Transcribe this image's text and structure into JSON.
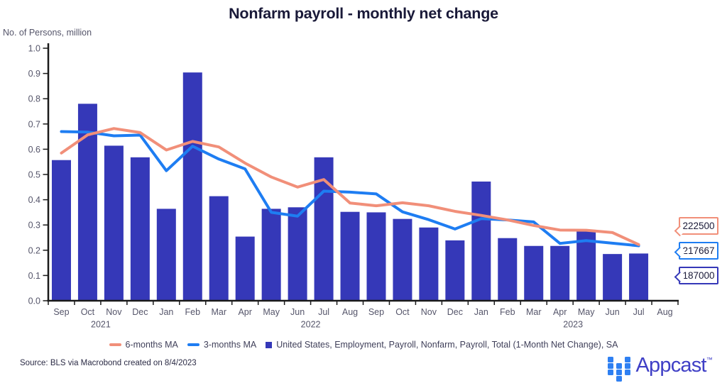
{
  "title": "Nonfarm payroll - monthly net change",
  "y_axis_label": "No. of Persons, million",
  "source": "Source: BLS via Macrobond created on 8/4/2023",
  "logo": {
    "brand": "Appcast",
    "trademark": "™"
  },
  "legend": [
    {
      "label": "6-months MA",
      "swatch": "ma6"
    },
    {
      "label": "3-months MA",
      "swatch": "ma3"
    },
    {
      "label": "United States, Employment, Payroll, Nonfarm, Payroll, Total (1-Month Net Change), SA",
      "swatch": "bar"
    }
  ],
  "callouts": [
    {
      "value": "222500",
      "series": "6-months MA",
      "color_key": "ma6"
    },
    {
      "value": "217667",
      "series": "3-months MA",
      "color_key": "ma3"
    },
    {
      "value": "187000",
      "series": "payroll-net-change",
      "color_key": "bar"
    }
  ],
  "colors": {
    "bar": "#3538B8",
    "ma6": "#F18F79",
    "ma3": "#1E7DF2",
    "axis_line": "#1A1A1A",
    "axis_text": "#55556A",
    "title_text": "#191938",
    "legend_text": "#40405A",
    "callout_text": "#1A1A38",
    "source_text": "#2B2B45",
    "logo_square": "#2F80F2",
    "logo_text": "#3F3FC6"
  },
  "chart_data": {
    "type": "bar+line",
    "title": "Nonfarm payroll - monthly net change",
    "ylabel": "No. of Persons, million",
    "ylim": [
      0,
      1
    ],
    "ytick_step": 0.1,
    "grid": false,
    "legend_position": "bottom",
    "months": [
      "Sep",
      "Oct",
      "Nov",
      "Dec",
      "Jan",
      "Feb",
      "Mar",
      "Apr",
      "May",
      "Jun",
      "Jul",
      "Aug",
      "Sep",
      "Oct",
      "Nov",
      "Dec",
      "Jan",
      "Feb",
      "Mar",
      "Apr",
      "May",
      "Jun",
      "Jul",
      "Aug"
    ],
    "years": [
      {
        "label": "2021",
        "span": [
          0,
          3
        ]
      },
      {
        "label": "2022",
        "span": [
          4,
          15
        ]
      },
      {
        "label": "2023",
        "span": [
          16,
          23
        ]
      }
    ],
    "bars": {
      "name": "United States, Employment, Payroll, Nonfarm, Payroll, Total (1-Month Net Change), SA",
      "values": [
        0.557,
        0.78,
        0.614,
        0.568,
        0.364,
        0.904,
        0.414,
        0.254,
        0.364,
        0.37,
        0.568,
        0.352,
        0.35,
        0.324,
        0.29,
        0.239,
        0.472,
        0.248,
        0.217,
        0.217,
        0.281,
        0.185,
        0.187
      ]
    },
    "series": [
      {
        "name": "6-months MA",
        "values": [
          0.585,
          0.657,
          0.682,
          0.666,
          0.597,
          0.631,
          0.609,
          0.545,
          0.49,
          0.45,
          0.48,
          0.387,
          0.376,
          0.388,
          0.376,
          0.354,
          0.338,
          0.32,
          0.298,
          0.28,
          0.279,
          0.27,
          0.2225
        ]
      },
      {
        "name": "3-months MA",
        "values": [
          0.67,
          0.668,
          0.653,
          0.656,
          0.515,
          0.612,
          0.561,
          0.522,
          0.35,
          0.335,
          0.434,
          0.43,
          0.423,
          0.352,
          0.321,
          0.284,
          0.325,
          0.32,
          0.312,
          0.227,
          0.238,
          0.228,
          0.2177
        ]
      }
    ],
    "end_labels": {
      "ma6": 222500,
      "ma3": 217667,
      "bar": 187000
    }
  }
}
